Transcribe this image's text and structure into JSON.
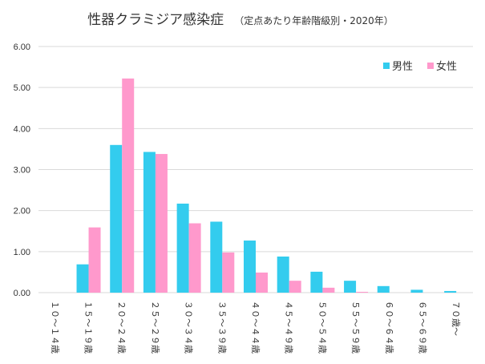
{
  "chart_data": {
    "type": "bar",
    "title": "性器クラミジア感染症",
    "subtitle": "（定点あたり年齢階級別・2020年）",
    "categories": [
      "１０～１４歳",
      "１５～１９歳",
      "２０～２４歳",
      "２５～２９歳",
      "３０～３４歳",
      "３５～３９歳",
      "４０～４４歳",
      "４５～４９歳",
      "５０～５４歳",
      "５５～５９歳",
      "６０～６４歳",
      "６５～６９歳",
      "７０歳～"
    ],
    "series": [
      {
        "name": "男性",
        "color": "#33ccee",
        "values": [
          0.0,
          0.69,
          3.6,
          3.43,
          2.17,
          1.73,
          1.27,
          0.88,
          0.51,
          0.29,
          0.16,
          0.07,
          0.04
        ]
      },
      {
        "name": "女性",
        "color": "#ff99cc",
        "values": [
          0.0,
          1.59,
          5.22,
          3.38,
          1.69,
          0.98,
          0.49,
          0.29,
          0.12,
          0.02,
          0.0,
          0.0,
          0.0
        ]
      }
    ],
    "yticks": [
      "0.00",
      "1.00",
      "2.00",
      "3.00",
      "4.00",
      "5.00",
      "6.00"
    ],
    "ylim": [
      0,
      6
    ],
    "grid": true,
    "legend_position": "top-right"
  }
}
